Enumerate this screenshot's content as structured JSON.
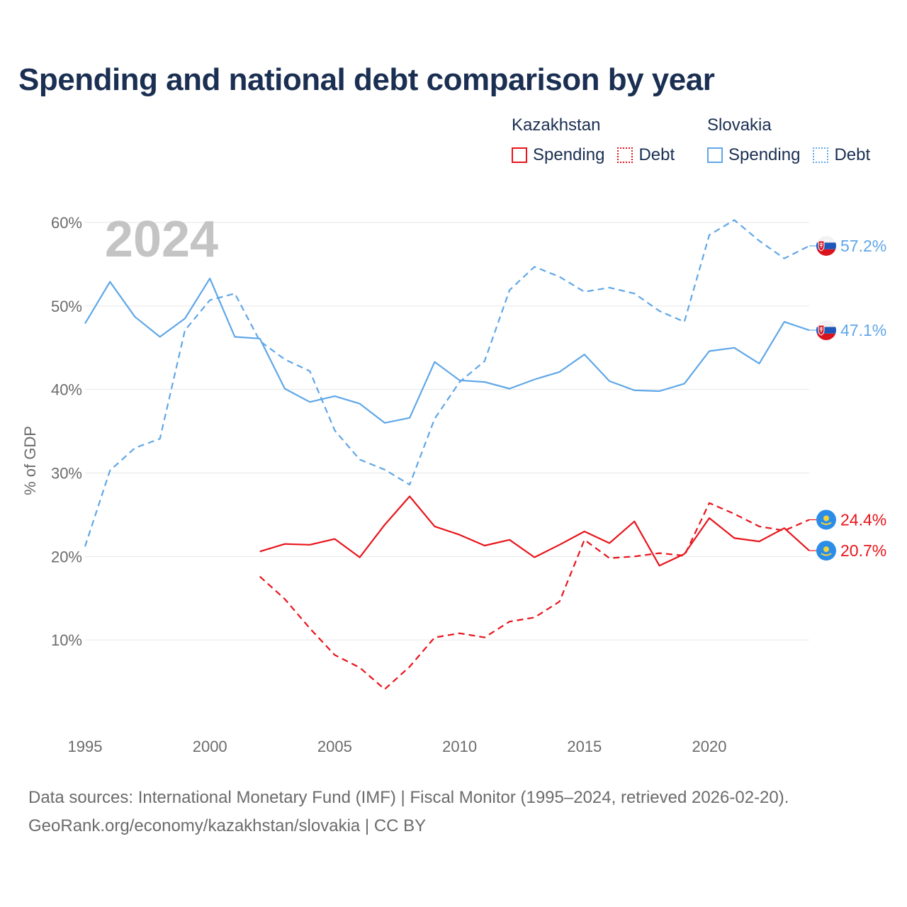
{
  "title": "Spending and national debt comparison by year",
  "legend": {
    "groups": [
      {
        "country": "Kazakhstan",
        "color": "#e8141b",
        "items": [
          {
            "label": "Spending",
            "style": "solid"
          },
          {
            "label": "Debt",
            "style": "dotted"
          }
        ]
      },
      {
        "country": "Slovakia",
        "color": "#5fa7e8",
        "items": [
          {
            "label": "Spending",
            "style": "solid"
          },
          {
            "label": "Debt",
            "style": "dotted"
          }
        ]
      }
    ]
  },
  "sources": {
    "line1": "Data sources: International Monetary Fund (IMF) | Fiscal Monitor (1995–2024, retrieved 2026-02-20).",
    "line2": "GeoRank.org/economy/kazakhstan/slovakia | CC BY"
  },
  "chart_data": {
    "type": "line",
    "title": "Spending and national debt comparison by year",
    "year_label": "2024",
    "ylabel": "% of GDP",
    "xlabel": "",
    "xlim": [
      1995,
      2024
    ],
    "ylim": [
      0,
      60
    ],
    "grid": true,
    "y_ticks": [
      {
        "value": 10,
        "label": "10%"
      },
      {
        "value": 20,
        "label": "20%"
      },
      {
        "value": 30,
        "label": "30%"
      },
      {
        "value": 40,
        "label": "40%"
      },
      {
        "value": 50,
        "label": "50%"
      },
      {
        "value": 60,
        "label": "60%"
      }
    ],
    "x_ticks": [
      {
        "value": 1995,
        "label": "1995"
      },
      {
        "value": 2000,
        "label": "2000"
      },
      {
        "value": 2005,
        "label": "2005"
      },
      {
        "value": 2010,
        "label": "2010"
      },
      {
        "value": 2015,
        "label": "2015"
      },
      {
        "value": 2020,
        "label": "2020"
      }
    ],
    "series": [
      {
        "name": "Slovakia Spending",
        "country": "Slovakia",
        "metric": "Spending",
        "color": "#5fa7e8",
        "dashed": false,
        "end_label": "47.1%",
        "x": [
          1995,
          1996,
          1997,
          1998,
          1999,
          2000,
          2001,
          2002,
          2003,
          2004,
          2005,
          2006,
          2007,
          2008,
          2009,
          2010,
          2011,
          2012,
          2013,
          2014,
          2015,
          2016,
          2017,
          2018,
          2019,
          2020,
          2021,
          2022,
          2023,
          2024
        ],
        "values": [
          47.9,
          52.9,
          48.7,
          46.3,
          48.5,
          53.3,
          46.3,
          46.1,
          40.1,
          38.5,
          39.2,
          38.3,
          36.0,
          36.6,
          43.3,
          41.1,
          40.9,
          40.1,
          41.2,
          42.1,
          44.2,
          41.0,
          39.9,
          39.8,
          40.7,
          44.6,
          45.0,
          43.1,
          48.1,
          47.1
        ]
      },
      {
        "name": "Slovakia Debt",
        "country": "Slovakia",
        "metric": "Debt",
        "color": "#5fa7e8",
        "dashed": true,
        "end_label": "57.2%",
        "x": [
          1995,
          1996,
          1997,
          1998,
          1999,
          2000,
          2001,
          2002,
          2003,
          2004,
          2005,
          2006,
          2007,
          2008,
          2009,
          2010,
          2011,
          2012,
          2013,
          2014,
          2015,
          2016,
          2017,
          2018,
          2019,
          2020,
          2021,
          2022,
          2023,
          2024
        ],
        "values": [
          21.2,
          30.3,
          33.0,
          34.1,
          47.1,
          50.7,
          51.5,
          45.8,
          43.6,
          42.2,
          35.1,
          31.6,
          30.4,
          28.6,
          36.5,
          40.9,
          43.4,
          51.9,
          54.7,
          53.5,
          51.7,
          52.2,
          51.5,
          49.4,
          48.1,
          58.5,
          60.3,
          57.8,
          55.7,
          57.2
        ]
      },
      {
        "name": "Kazakhstan Spending",
        "country": "Kazakhstan",
        "metric": "Spending",
        "color": "#e8141b",
        "dashed": false,
        "end_label": "20.7%",
        "x": [
          2002,
          2003,
          2004,
          2005,
          2006,
          2007,
          2008,
          2009,
          2010,
          2011,
          2012,
          2013,
          2014,
          2015,
          2016,
          2017,
          2018,
          2019,
          2020,
          2021,
          2022,
          2023,
          2024
        ],
        "values": [
          20.6,
          21.5,
          21.4,
          22.1,
          19.9,
          23.8,
          27.2,
          23.6,
          22.6,
          21.3,
          22.0,
          19.9,
          21.4,
          23.0,
          21.6,
          24.2,
          18.9,
          20.3,
          24.6,
          22.2,
          21.8,
          23.4,
          20.7
        ]
      },
      {
        "name": "Kazakhstan Debt",
        "country": "Kazakhstan",
        "metric": "Debt",
        "color": "#e8141b",
        "dashed": true,
        "end_label": "24.4%",
        "x": [
          2002,
          2003,
          2004,
          2005,
          2006,
          2007,
          2008,
          2009,
          2010,
          2011,
          2012,
          2013,
          2014,
          2015,
          2016,
          2017,
          2018,
          2019,
          2020,
          2021,
          2022,
          2023,
          2024
        ],
        "values": [
          17.6,
          14.9,
          11.4,
          8.2,
          6.7,
          4.1,
          6.8,
          10.3,
          10.8,
          10.3,
          12.2,
          12.7,
          14.6,
          22.0,
          19.8,
          20.0,
          20.4,
          20.1,
          26.4,
          25.1,
          23.6,
          23.1,
          24.4
        ]
      }
    ]
  }
}
